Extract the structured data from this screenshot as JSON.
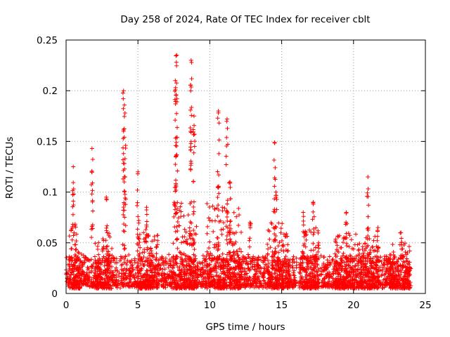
{
  "chart_data": {
    "type": "scatter",
    "title": "Day 258 of 2024, Rate Of TEC Index for receiver cblt",
    "xlabel": "GPS time / hours",
    "ylabel": "ROTI / TECUs",
    "xlim": [
      0,
      25
    ],
    "ylim": [
      0,
      0.25
    ],
    "xticks": [
      0,
      5,
      10,
      15,
      20,
      25
    ],
    "yticks": [
      0,
      0.05,
      0.1,
      0.15,
      0.2,
      0.25
    ],
    "xtick_labels": [
      "0",
      "5",
      "10",
      "15",
      "20",
      "25"
    ],
    "ytick_labels": [
      "0",
      "0.05",
      "0.1",
      "0.15",
      "0.2",
      "0.25"
    ],
    "grid": true,
    "marker": "plus",
    "color": "#ff0000",
    "data_time_range_hours": [
      0,
      24
    ],
    "baseline_range": [
      0.005,
      0.035
    ],
    "notable_peaks": [
      {
        "x": 0.5,
        "y": 0.125
      },
      {
        "x": 1.8,
        "y": 0.143
      },
      {
        "x": 2.8,
        "y": 0.095
      },
      {
        "x": 4.0,
        "y": 0.2
      },
      {
        "x": 4.1,
        "y": 0.178
      },
      {
        "x": 5.0,
        "y": 0.12
      },
      {
        "x": 5.6,
        "y": 0.085
      },
      {
        "x": 7.7,
        "y": 0.235
      },
      {
        "x": 7.6,
        "y": 0.21
      },
      {
        "x": 8.7,
        "y": 0.23
      },
      {
        "x": 8.9,
        "y": 0.175
      },
      {
        "x": 10.6,
        "y": 0.18
      },
      {
        "x": 11.2,
        "y": 0.172
      },
      {
        "x": 11.4,
        "y": 0.11
      },
      {
        "x": 12.8,
        "y": 0.07
      },
      {
        "x": 14.5,
        "y": 0.149
      },
      {
        "x": 14.6,
        "y": 0.1
      },
      {
        "x": 16.5,
        "y": 0.08
      },
      {
        "x": 17.2,
        "y": 0.09
      },
      {
        "x": 19.5,
        "y": 0.08
      },
      {
        "x": 21.0,
        "y": 0.115
      },
      {
        "x": 21.7,
        "y": 0.065
      },
      {
        "x": 23.3,
        "y": 0.06
      }
    ],
    "activity_regions": [
      {
        "x_range": [
          0.2,
          1.0
        ],
        "upper": 0.07
      },
      {
        "x_range": [
          2.0,
          3.2
        ],
        "upper": 0.06
      },
      {
        "x_range": [
          5.0,
          6.5
        ],
        "upper": 0.06
      },
      {
        "x_range": [
          7.3,
          9.2
        ],
        "upper": 0.09
      },
      {
        "x_range": [
          9.8,
          12.2
        ],
        "upper": 0.09
      },
      {
        "x_range": [
          14.0,
          15.5
        ],
        "upper": 0.07
      },
      {
        "x_range": [
          16.3,
          17.6
        ],
        "upper": 0.065
      },
      {
        "x_range": [
          18.7,
          21.8
        ],
        "upper": 0.06
      },
      {
        "x_range": [
          22.5,
          24.0
        ],
        "upper": 0.05
      }
    ]
  }
}
